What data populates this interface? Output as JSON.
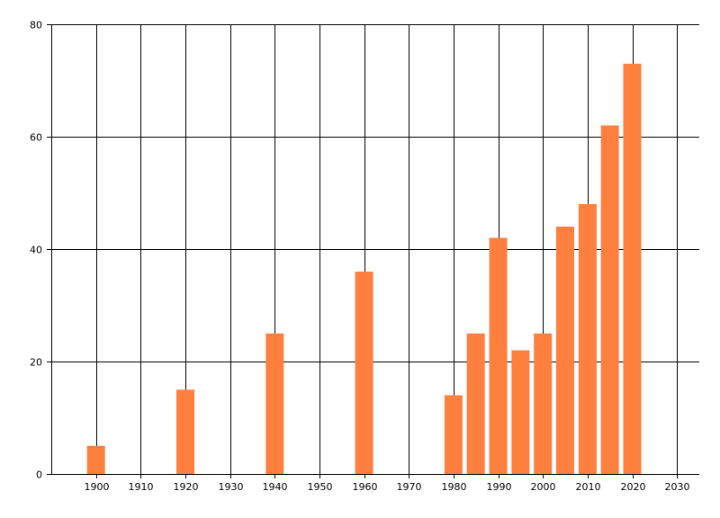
{
  "chart_data": {
    "type": "bar",
    "x": [
      1900,
      1920,
      1940,
      1960,
      1980,
      1985,
      1990,
      1995,
      2000,
      2005,
      2010,
      2015,
      2020
    ],
    "values": [
      5,
      15,
      25,
      36,
      14,
      25,
      42,
      22,
      25,
      44,
      48,
      62,
      73
    ],
    "xlim": [
      1890,
      2035
    ],
    "ylim": [
      0,
      80
    ],
    "x_ticks": [
      1900,
      1910,
      1920,
      1930,
      1940,
      1950,
      1960,
      1970,
      1980,
      1990,
      2000,
      2010,
      2020,
      2030
    ],
    "y_ticks": [
      0,
      20,
      40,
      60,
      80
    ],
    "title": "",
    "xlabel": "",
    "ylabel": "",
    "grid": true,
    "bar_color": "#ff7f3f",
    "grid_color": "#000000"
  }
}
